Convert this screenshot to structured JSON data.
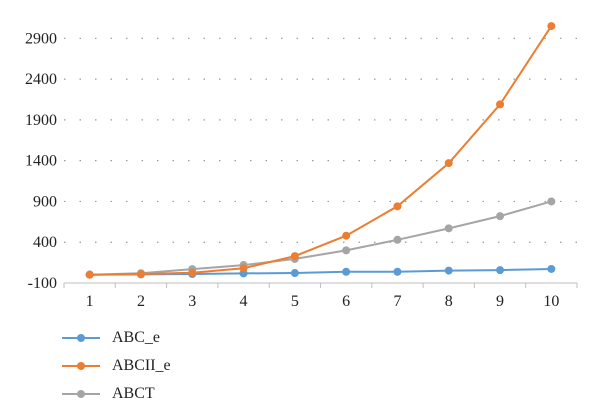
{
  "chart_data": {
    "type": "line",
    "title": "",
    "xlabel": "",
    "ylabel": "",
    "x": [
      1,
      2,
      3,
      4,
      5,
      6,
      7,
      8,
      9,
      10
    ],
    "x_tick_labels": [
      "1",
      "2",
      "3",
      "4",
      "5",
      "6",
      "7",
      "8",
      "9",
      "10"
    ],
    "y_tick_labels": [
      "2900",
      "2400",
      "1900",
      "1400",
      "900",
      "400",
      "-100"
    ],
    "y_ticks": [
      2900,
      2400,
      1900,
      1400,
      900,
      400,
      -100
    ],
    "ylim": [
      -100,
      3100
    ],
    "grid": "horizontal dotted",
    "legend_position": "bottom-left",
    "series": [
      {
        "name": "ABC_e",
        "color": "#5B9BD5",
        "values": [
          2,
          5,
          10,
          18,
          22,
          38,
          38,
          52,
          58,
          72
        ]
      },
      {
        "name": "ABCII_e",
        "color": "#ED7D31",
        "values": [
          2,
          10,
          25,
          80,
          230,
          480,
          840,
          1370,
          2090,
          3050
        ]
      },
      {
        "name": "ABCT",
        "color": "#A5A5A5",
        "values": [
          2,
          20,
          70,
          120,
          195,
          300,
          430,
          570,
          720,
          900
        ]
      }
    ]
  }
}
